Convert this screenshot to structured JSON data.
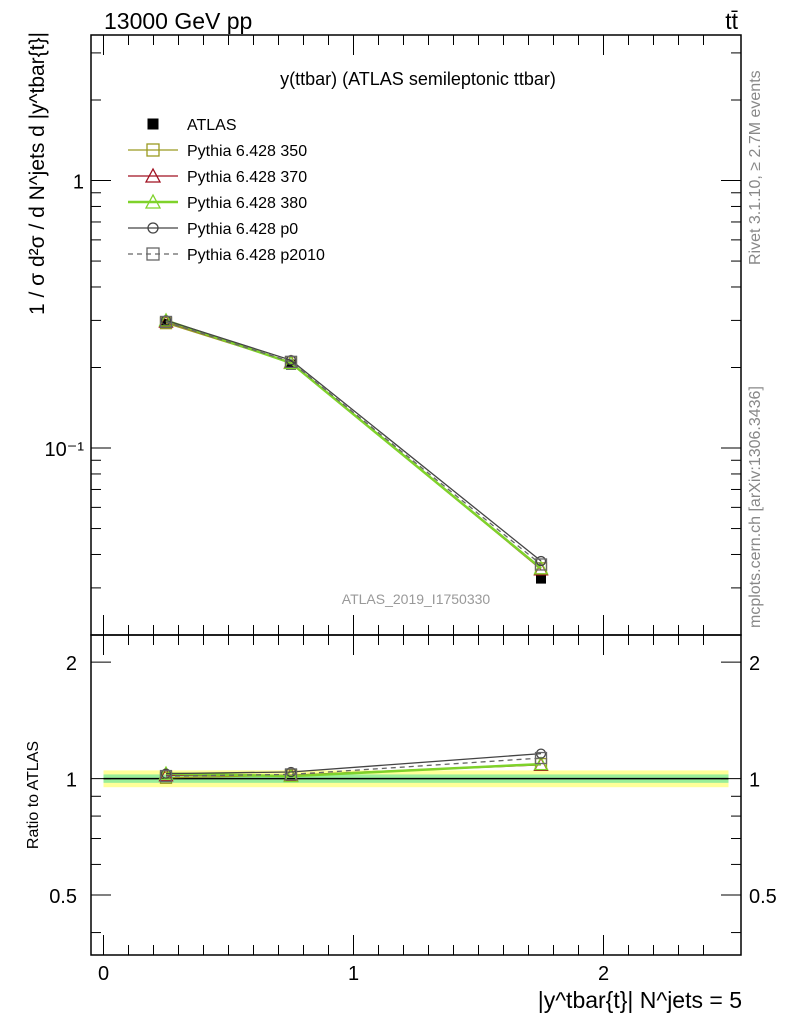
{
  "header": {
    "left": "13000 GeV pp",
    "right": "tt̄"
  },
  "side_labels": {
    "right_top": "Rivet 3.1.10, ≥ 2.7M events",
    "right_bottom": "mcplots.cern.ch [arXiv:1306.3436]"
  },
  "chart_data": [
    {
      "type": "line",
      "title": "y(ttbar) (ATLAS semileptonic ttbar)",
      "watermark": "ATLAS_2019_I1750330",
      "ylabel": "1 / σ d²σ / d N^jets d |y^tbar{t}|",
      "yscale": "log",
      "ylim": [
        0.02,
        3.5
      ],
      "y_tick_labels": [
        "10⁻¹",
        "1"
      ],
      "x": [
        0.25,
        0.75,
        1.75
      ],
      "series": [
        {
          "name": "ATLAS",
          "color": "#000000",
          "marker": "filled-square",
          "values": [
            0.291,
            0.205,
            0.0325
          ]
        },
        {
          "name": "Pythia 6.428 350",
          "color": "#9a9a20",
          "marker": "open-square",
          "values": [
            0.293,
            0.209,
            0.0355
          ]
        },
        {
          "name": "Pythia 6.428 370",
          "color": "#a01020",
          "marker": "open-triangle",
          "values": [
            0.297,
            0.209,
            0.0352
          ]
        },
        {
          "name": "Pythia 6.428 380",
          "color": "#7fd22a",
          "marker": "open-triangle",
          "values": [
            0.3,
            0.208,
            0.0355
          ]
        },
        {
          "name": "Pythia 6.428 p0",
          "color": "#444444",
          "marker": "open-circle",
          "values": [
            0.3,
            0.213,
            0.0378
          ]
        },
        {
          "name": "Pythia 6.428 p2010",
          "color": "#666666",
          "marker": "open-square",
          "dashed": true,
          "values": [
            0.296,
            0.21,
            0.0367
          ]
        }
      ]
    },
    {
      "type": "line",
      "ylabel": "Ratio to ATLAS",
      "xlabel": "|y^tbar{t}| N^jets = 5",
      "xlim": [
        -0.05,
        2.55
      ],
      "ylim": [
        0.35,
        2.35
      ],
      "x_ticks": [
        0,
        1,
        2
      ],
      "x_tick_labels": [
        "0",
        "1",
        "2"
      ],
      "y_ticks": [
        0.5,
        1,
        2
      ],
      "y_tick_labels": [
        "0.5",
        "1",
        "2"
      ],
      "band_outer": [
        0.95,
        1.05
      ],
      "band_inner": [
        0.975,
        1.025
      ],
      "x": [
        0.25,
        0.75,
        1.75
      ],
      "series": [
        {
          "name": "Pythia 6.428 350",
          "values": [
            1.005,
            1.02,
            1.09
          ]
        },
        {
          "name": "Pythia 6.428 370",
          "values": [
            1.02,
            1.02,
            1.085
          ]
        },
        {
          "name": "Pythia 6.428 380",
          "values": [
            1.03,
            1.015,
            1.09
          ]
        },
        {
          "name": "Pythia 6.428 p0",
          "values": [
            1.03,
            1.04,
            1.16
          ]
        },
        {
          "name": "Pythia 6.428 p2010",
          "values": [
            1.015,
            1.025,
            1.13
          ]
        }
      ]
    }
  ]
}
